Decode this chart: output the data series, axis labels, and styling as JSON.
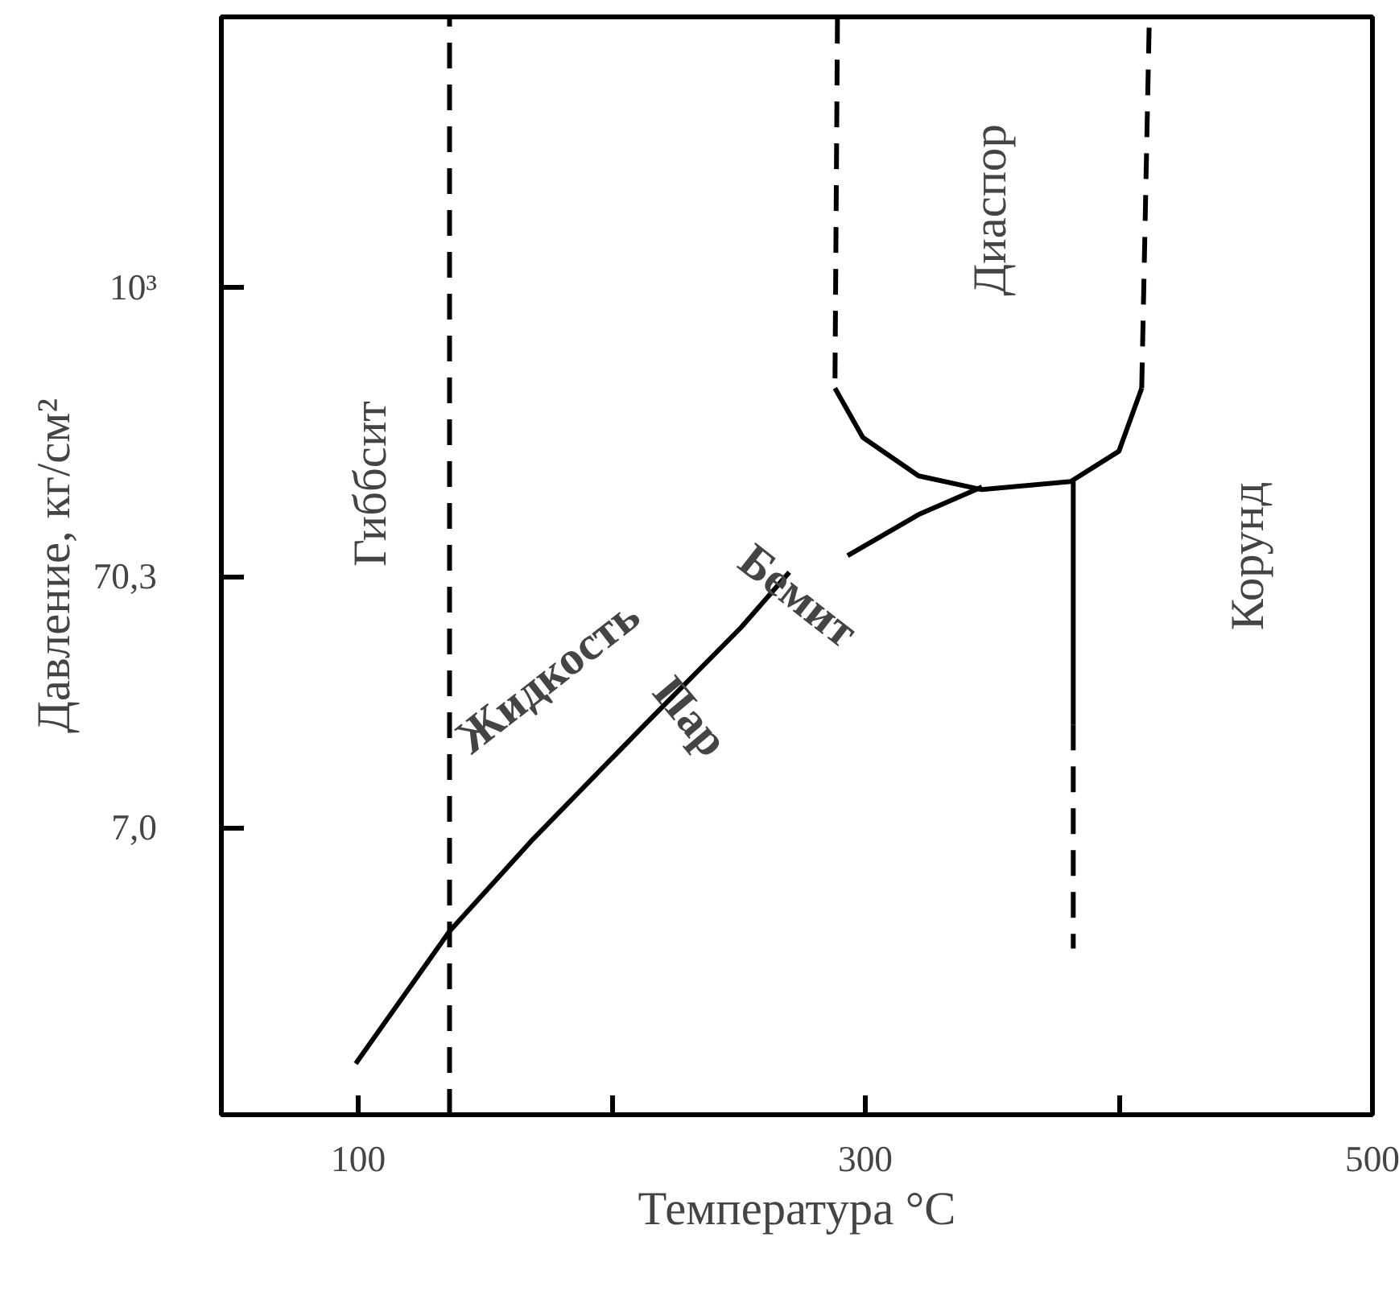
{
  "chart_data": {
    "type": "line",
    "xlabel": "Температура °C",
    "ylabel": "Давление, кг/см²",
    "xlim": [
      46,
      500
    ],
    "ylim": [
      0.5,
      12000
    ],
    "log": "y",
    "xticks": [
      100,
      {
        "value": 200,
        "label": null
      },
      300,
      {
        "value": 400,
        "label": null
      },
      500
    ],
    "yticks": [
      {
        "value": 7,
        "label": "7,0"
      },
      {
        "value": 70.3,
        "label": "70,3"
      },
      {
        "value": 1000,
        "label": "10³"
      }
    ],
    "grid": false,
    "marker": "none",
    "series": [
      {
        "color": "#000000",
        "line_style": "dashed",
        "x": [
          136,
          136
        ],
        "values": [
          0.5,
          12000
        ]
      },
      {
        "color": "#000000",
        "line_style": "solid",
        "x": [
          99,
          136,
          169,
          213,
          251,
          270,
          281,
          293,
          321,
          346
        ],
        "values": [
          0.8,
          2.7,
          6.3,
          18,
          44,
          73,
          null,
          85,
          124,
          160
        ]
      },
      {
        "color": "#000000",
        "line_style": "dashed",
        "x": [
          289,
          288
        ],
        "values": [
          11900,
          396
        ]
      },
      {
        "color": "#000000",
        "line_style": "solid",
        "x": [
          288,
          299,
          321,
          346,
          381,
          400,
          409
        ],
        "values": [
          396,
          252,
          177,
          156,
          168,
          222,
          396
        ]
      },
      {
        "color": "#000000",
        "line_style": "dashed",
        "x": [
          409,
          412
        ],
        "values": [
          396,
          11900
        ]
      },
      {
        "color": "#000000",
        "line_style": "solid",
        "x": [
          382,
          382
        ],
        "values": [
          168,
          18
        ]
      },
      {
        "color": "#000000",
        "line_style": "dashed",
        "x": [
          382,
          382
        ],
        "values": [
          18,
          2.3
        ]
      }
    ],
    "annotations": [
      "Гиббсит",
      "Диаспор",
      "Корунд",
      "Жидкость",
      "Пар",
      "Бемит"
    ]
  }
}
